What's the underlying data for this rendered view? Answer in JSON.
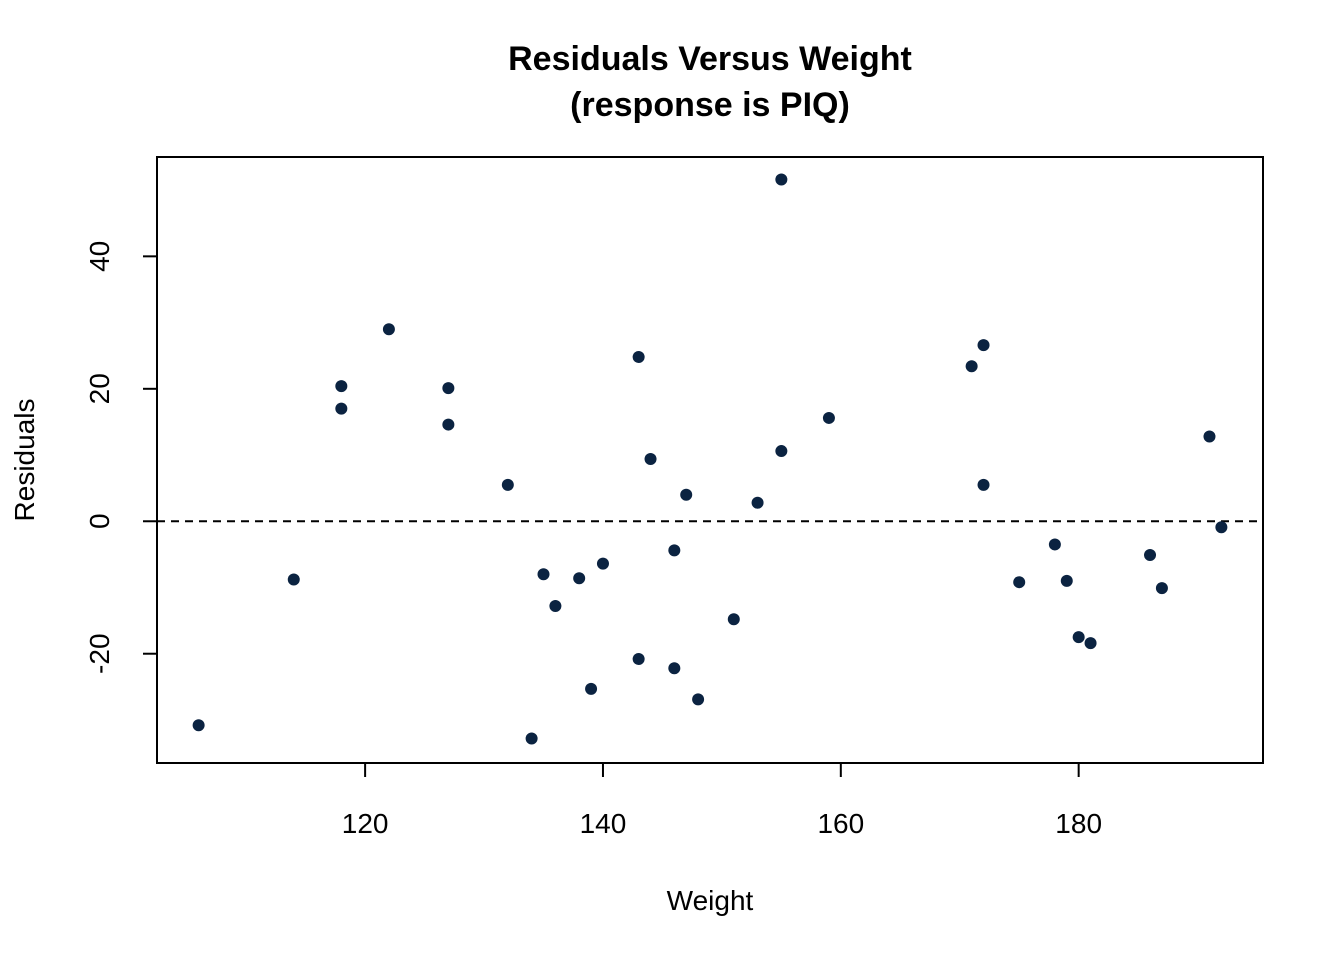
{
  "chart_data": {
    "type": "scatter",
    "title": "Residuals Versus Weight",
    "subtitle": "(response is PIQ)",
    "xlabel": "Weight",
    "ylabel": "Residuals",
    "xlim": [
      102.5,
      195.5
    ],
    "ylim": [
      -36.5,
      55.0
    ],
    "xticks": [
      120,
      140,
      160,
      180
    ],
    "yticks": [
      -20,
      0,
      20,
      40
    ],
    "reference_line": {
      "y": 0,
      "style": "dashed"
    },
    "point_color": "#0b2341",
    "grid": false,
    "x": [
      106,
      114,
      118,
      118,
      122,
      127,
      127,
      132,
      134,
      135,
      136,
      138,
      139,
      140,
      143,
      143,
      144,
      146,
      146,
      147,
      148,
      151,
      153,
      155,
      155,
      159,
      171,
      172,
      172,
      175,
      178,
      179,
      180,
      181,
      186,
      187,
      191,
      192
    ],
    "y": [
      -30.8,
      -8.8,
      20.4,
      17.0,
      29.0,
      20.1,
      14.6,
      5.5,
      -32.8,
      -8.0,
      -12.8,
      -8.6,
      -25.3,
      -6.4,
      -20.8,
      24.8,
      9.4,
      -4.4,
      -22.2,
      4.0,
      -26.9,
      -14.8,
      2.8,
      51.6,
      10.6,
      15.6,
      23.4,
      26.6,
      5.5,
      -9.2,
      -3.5,
      -9.0,
      -17.5,
      -18.4,
      -5.1,
      -10.1,
      12.8,
      -0.9
    ]
  }
}
